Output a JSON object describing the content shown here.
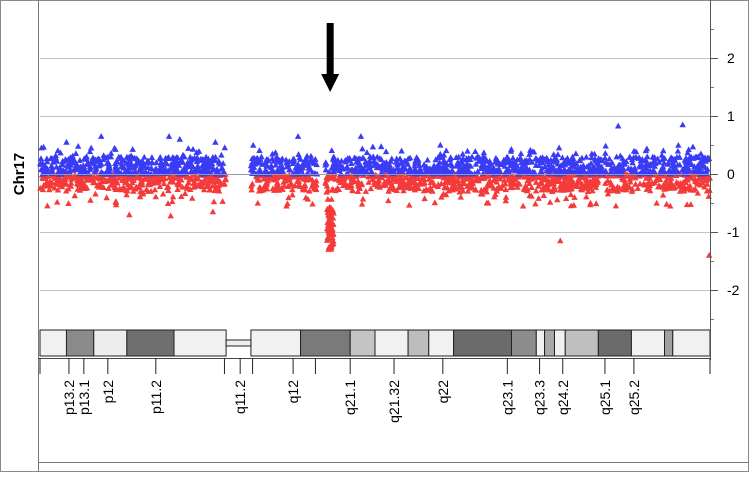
{
  "chart_data": {
    "type": "scatter",
    "ylabel": "Chr17",
    "ylim": [
      -2.95,
      2.95
    ],
    "yticks": [
      2,
      1,
      0,
      -1,
      -2
    ],
    "grid": true,
    "xticks": [
      "p13.2",
      "p13.1",
      "p12",
      "p11.2",
      "q11.2",
      "q12",
      "q21.1",
      "q21.32",
      "q22",
      "q23.1",
      "q23.3",
      "q24.2",
      "q25.1",
      "q25.2"
    ],
    "segments_mb": [
      [
        0,
        22.5
      ],
      [
        25.5,
        33.5
      ],
      [
        34.5,
        81
      ]
    ],
    "series": [
      {
        "color": "#3a3cf5",
        "typical_range": [
          0.0,
          0.3
        ],
        "outliers": [
          [
            3.2,
            0.55
          ],
          [
            7.4,
            0.65
          ],
          [
            15.6,
            0.65
          ],
          [
            16.9,
            0.6
          ],
          [
            21.2,
            0.55
          ],
          [
            31.2,
            0.65
          ],
          [
            38.8,
            0.65
          ],
          [
            48.4,
            0.5
          ],
          [
            69.9,
            0.83
          ],
          [
            77.7,
            0.85
          ],
          [
            79.9,
            0.35
          ]
        ]
      },
      {
        "color": "#f53a3a",
        "typical_range": [
          -0.3,
          0.0
        ],
        "deletion_region_mb": [
          34.7,
          35.5
        ],
        "deletion_range": [
          -1.3,
          -0.55
        ],
        "outliers": [
          [
            6.1,
            -0.45
          ],
          [
            10.8,
            -0.7
          ],
          [
            15.8,
            -0.72
          ],
          [
            20.9,
            -0.65
          ],
          [
            29.8,
            -0.55
          ],
          [
            54.2,
            -0.5
          ],
          [
            62.9,
            -1.15
          ],
          [
            76.2,
            -0.55
          ],
          [
            80.9,
            -1.4
          ]
        ]
      }
    ],
    "annotation": {
      "type": "arrow",
      "x_mb": 35.2
    },
    "ideogram": [
      {
        "start": 0.0,
        "end": 3.2,
        "color": "#f1f1f1"
      },
      {
        "start": 3.2,
        "end": 6.5,
        "color": "#8a8a8a"
      },
      {
        "start": 6.5,
        "end": 10.5,
        "color": "#ededed"
      },
      {
        "start": 10.5,
        "end": 16.2,
        "color": "#6f6f6f"
      },
      {
        "start": 16.2,
        "end": 22.5,
        "color": "#f1f1f1"
      },
      {
        "start": 25.5,
        "end": 31.5,
        "color": "#f1f1f1"
      },
      {
        "start": 31.5,
        "end": 37.5,
        "color": "#7a7a7a"
      },
      {
        "start": 37.5,
        "end": 40.5,
        "color": "#c4c4c4"
      },
      {
        "start": 40.5,
        "end": 44.5,
        "color": "#f1f1f1"
      },
      {
        "start": 44.5,
        "end": 47.0,
        "color": "#bdbdbd"
      },
      {
        "start": 47.0,
        "end": 50.0,
        "color": "#f1f1f1"
      },
      {
        "start": 50.0,
        "end": 57.0,
        "color": "#6b6b6b"
      },
      {
        "start": 57.0,
        "end": 60.0,
        "color": "#8d8d8d"
      },
      {
        "start": 60.0,
        "end": 61.0,
        "color": "#f1f1f1"
      },
      {
        "start": 61.0,
        "end": 62.2,
        "color": "#a9a9a9"
      },
      {
        "start": 62.2,
        "end": 63.5,
        "color": "#f1f1f1"
      },
      {
        "start": 63.5,
        "end": 67.5,
        "color": "#bfbfbf"
      },
      {
        "start": 67.5,
        "end": 71.5,
        "color": "#6b6b6b"
      },
      {
        "start": 71.5,
        "end": 75.5,
        "color": "#f1f1f1"
      },
      {
        "start": 75.5,
        "end": 76.5,
        "color": "#a0a0a0"
      },
      {
        "start": 76.5,
        "end": 81.0,
        "color": "#f1f1f1"
      }
    ]
  }
}
